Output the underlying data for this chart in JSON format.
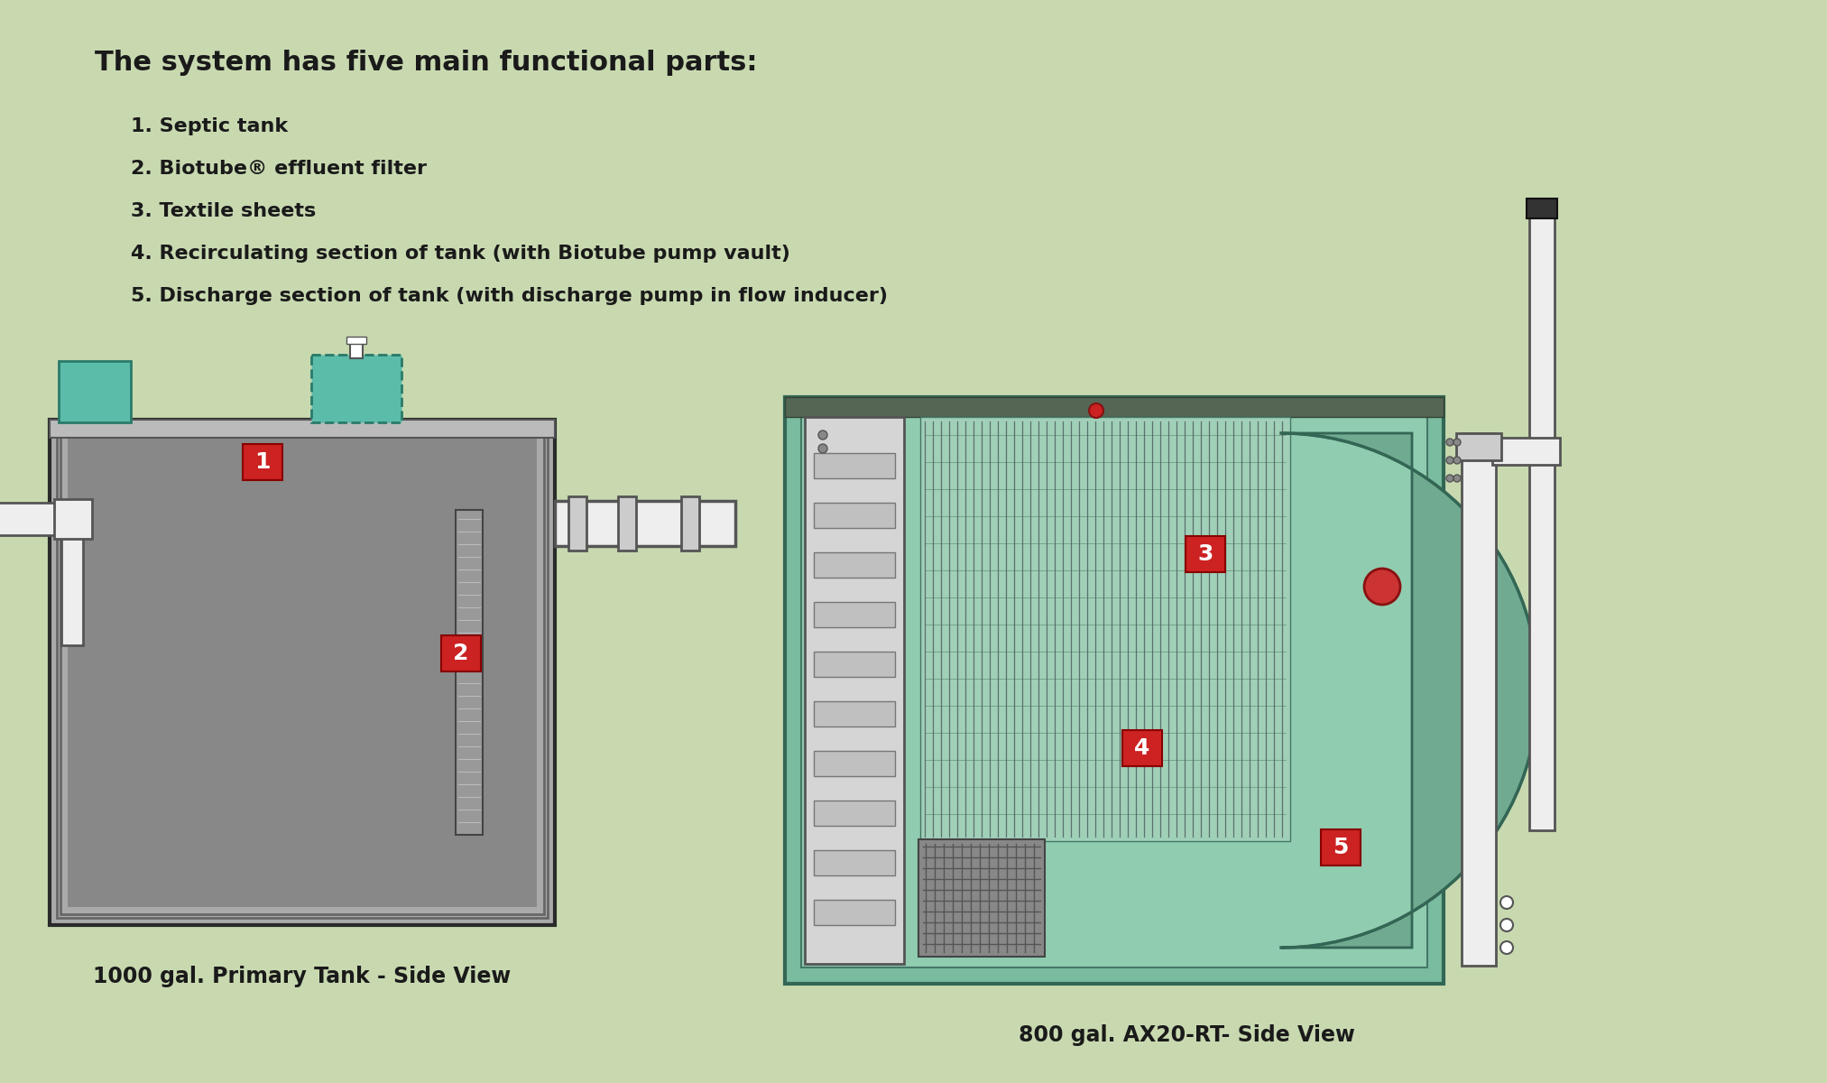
{
  "bg_color": "#c8d9b0",
  "title": "The system has five main functional parts:",
  "items": [
    "1. Septic tank",
    "2. Biotube® effluent filter",
    "3. Textile sheets",
    "4. Recirculating section of tank (with Biotube pump vault)",
    "5. Discharge section of tank (with discharge pump in flow inducer)"
  ],
  "label1_text": "1000 gal. Primary Tank - Side View",
  "label2_text": "800 gal. AX20-RT- Side View",
  "tank_gray_outer": "#aaaaaa",
  "tank_gray_inner": "#999999",
  "tank_gray_fill": "#888888",
  "tank_outline": "#2a2a2a",
  "teal_box": "#5bbcaa",
  "teal_tank": "#7abca0",
  "teal_tank_inner": "#90ccb0",
  "red_label": "#cc2222",
  "pipe_color": "#eeeeee",
  "pipe_outline": "#555555",
  "text_color": "#1a1a1a"
}
